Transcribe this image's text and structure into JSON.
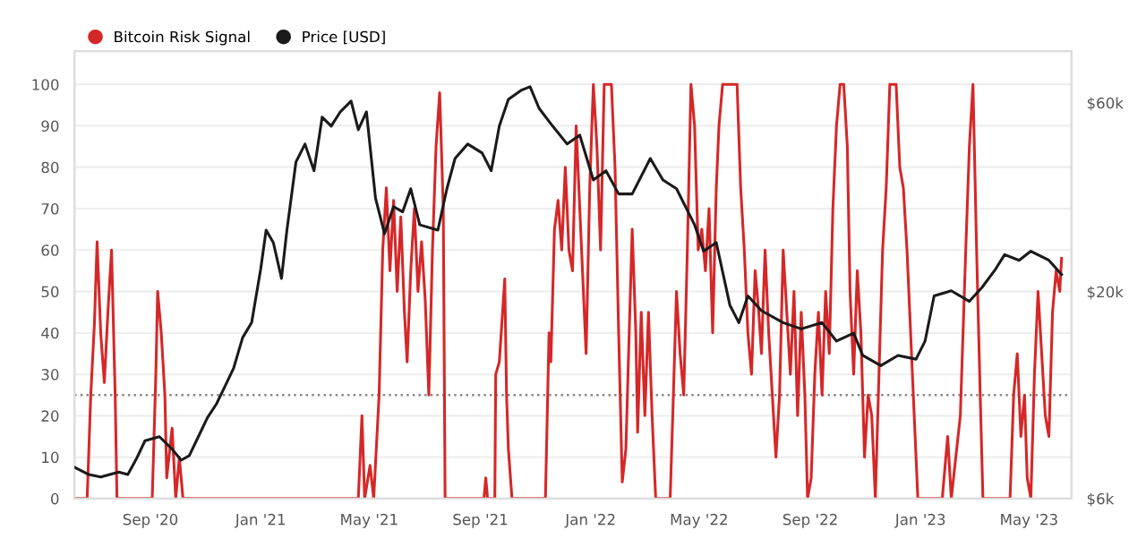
{
  "chart_data": {
    "type": "line",
    "xlim": [
      "2020-06-09",
      "2023-06-17"
    ],
    "xticks": [
      {
        "value": "2020-09-01",
        "label": "Sep '20"
      },
      {
        "value": "2021-01-01",
        "label": "Jan '21"
      },
      {
        "value": "2021-05-01",
        "label": "May '21"
      },
      {
        "value": "2021-09-01",
        "label": "Sep '21"
      },
      {
        "value": "2022-01-01",
        "label": "Jan '22"
      },
      {
        "value": "2022-05-01",
        "label": "May '22"
      },
      {
        "value": "2022-09-01",
        "label": "Sep '22"
      },
      {
        "value": "2023-01-01",
        "label": "Jan '23"
      },
      {
        "value": "2023-05-01",
        "label": "May '23"
      }
    ],
    "ylim": [
      0,
      108
    ],
    "yticks": [
      0,
      10,
      20,
      30,
      40,
      50,
      60,
      70,
      80,
      90,
      100
    ],
    "y2lim": [
      6000,
      81000
    ],
    "y2ticks": [
      {
        "value": 6000,
        "label": "$6k"
      },
      {
        "value": 20000,
        "label": "$20k"
      },
      {
        "value": 60000,
        "label": "$60k"
      }
    ],
    "log": "y2",
    "grid": "y",
    "legend": "top left",
    "marker": "none",
    "line_style": "solid",
    "ref_lines": [
      {
        "axis": "y",
        "value": 25,
        "label": null,
        "color": "#888888",
        "line_style": "dotted"
      }
    ],
    "series": [
      {
        "name": "Bitcoin Risk Signal",
        "color": "#d62728",
        "x": [
          "2020-06-09",
          "2020-06-23",
          "2020-06-27",
          "2020-07-01",
          "2020-07-04",
          "2020-07-08",
          "2020-07-12",
          "2020-07-16",
          "2020-07-20",
          "2020-07-24",
          "2020-07-26",
          "2020-09-03",
          "2020-09-07",
          "2020-09-09",
          "2020-09-13",
          "2020-09-17",
          "2020-09-19",
          "2020-09-25",
          "2020-09-29",
          "2020-10-03",
          "2020-10-07",
          "2021-04-19",
          "2021-04-23",
          "2021-04-26",
          "2021-05-02",
          "2021-05-06",
          "2021-05-12",
          "2021-05-16",
          "2021-05-20",
          "2021-05-24",
          "2021-05-28",
          "2021-06-01",
          "2021-06-05",
          "2021-06-09",
          "2021-06-12",
          "2021-06-16",
          "2021-06-20",
          "2021-06-24",
          "2021-06-28",
          "2021-07-02",
          "2021-07-06",
          "2021-07-10",
          "2021-07-14",
          "2021-07-18",
          "2021-07-22",
          "2021-07-24",
          "2021-09-05",
          "2021-09-07",
          "2021-09-09",
          "2021-09-17",
          "2021-09-18",
          "2021-09-22",
          "2021-09-28",
          "2021-09-30",
          "2021-10-02",
          "2021-10-06",
          "2021-11-12",
          "2021-11-16",
          "2021-11-18",
          "2021-11-22",
          "2021-11-26",
          "2021-11-30",
          "2021-12-04",
          "2021-12-08",
          "2021-12-12",
          "2021-12-16",
          "2021-12-20",
          "2021-12-24",
          "2021-12-27",
          "2021-12-31",
          "2022-01-04",
          "2022-01-08",
          "2022-01-12",
          "2022-01-16",
          "2022-01-24",
          "2022-01-28",
          "2022-02-01",
          "2022-02-05",
          "2022-02-09",
          "2022-02-12",
          "2022-02-16",
          "2022-02-20",
          "2022-02-22",
          "2022-02-26",
          "2022-03-02",
          "2022-03-06",
          "2022-03-10",
          "2022-03-14",
          "2022-03-30",
          "2022-04-02",
          "2022-04-06",
          "2022-04-10",
          "2022-04-14",
          "2022-04-18",
          "2022-04-22",
          "2022-04-26",
          "2022-04-30",
          "2022-05-04",
          "2022-05-08",
          "2022-05-12",
          "2022-05-16",
          "2022-05-20",
          "2022-05-23",
          "2022-05-27",
          "2022-06-12",
          "2022-06-16",
          "2022-06-20",
          "2022-06-24",
          "2022-06-28",
          "2022-07-02",
          "2022-07-06",
          "2022-07-09",
          "2022-07-13",
          "2022-07-17",
          "2022-07-21",
          "2022-07-25",
          "2022-07-29",
          "2022-08-02",
          "2022-08-06",
          "2022-08-10",
          "2022-08-14",
          "2022-08-18",
          "2022-08-22",
          "2022-08-26",
          "2022-08-29",
          "2022-09-02",
          "2022-09-06",
          "2022-09-10",
          "2022-09-14",
          "2022-09-18",
          "2022-09-22",
          "2022-09-26",
          "2022-09-30",
          "2022-10-04",
          "2022-10-08",
          "2022-10-12",
          "2022-10-15",
          "2022-10-19",
          "2022-10-23",
          "2022-10-27",
          "2022-10-31",
          "2022-11-04",
          "2022-11-08",
          "2022-11-12",
          "2022-11-16",
          "2022-11-20",
          "2022-11-24",
          "2022-11-28",
          "2022-12-05",
          "2022-12-09",
          "2022-12-13",
          "2022-12-17",
          "2022-12-21",
          "2022-12-25",
          "2022-12-29",
          "2023-01-25",
          "2023-01-31",
          "2023-02-04",
          "2023-02-14",
          "2023-02-20",
          "2023-02-24",
          "2023-02-28",
          "2023-03-04",
          "2023-03-08",
          "2023-03-11",
          "2023-04-10",
          "2023-04-14",
          "2023-04-18",
          "2023-04-22",
          "2023-04-26",
          "2023-04-29",
          "2023-05-03",
          "2023-05-07",
          "2023-05-11",
          "2023-05-15",
          "2023-05-19",
          "2023-05-23",
          "2023-05-27",
          "2023-05-31",
          "2023-06-04",
          "2023-06-06"
        ],
        "values": [
          0,
          0,
          25,
          42,
          62,
          40,
          28,
          45,
          60,
          25,
          0,
          0,
          30,
          50,
          40,
          25,
          5,
          17,
          0,
          10,
          0,
          0,
          20,
          0,
          8,
          0,
          25,
          60,
          75,
          55,
          72,
          50,
          68,
          45,
          33,
          55,
          70,
          50,
          62,
          48,
          25,
          60,
          85,
          98,
          70,
          0,
          0,
          5,
          0,
          0,
          30,
          33,
          53,
          25,
          12,
          0,
          0,
          40,
          33,
          65,
          72,
          60,
          80,
          60,
          55,
          90,
          70,
          50,
          35,
          75,
          100,
          85,
          60,
          100,
          100,
          80,
          40,
          4,
          12,
          35,
          65,
          40,
          16,
          45,
          20,
          45,
          20,
          0,
          0,
          21,
          50,
          35,
          25,
          60,
          100,
          90,
          60,
          65,
          55,
          70,
          40,
          75,
          90,
          100,
          100,
          75,
          60,
          40,
          30,
          55,
          45,
          35,
          60,
          40,
          25,
          10,
          25,
          60,
          45,
          30,
          50,
          20,
          45,
          25,
          0,
          5,
          30,
          45,
          25,
          50,
          35,
          70,
          90,
          100,
          100,
          85,
          50,
          30,
          55,
          40,
          10,
          25,
          20,
          0,
          30,
          60,
          75,
          100,
          100,
          80,
          75,
          60,
          40,
          20,
          0,
          0,
          15,
          0,
          20,
          60,
          85,
          100,
          60,
          25,
          0,
          0,
          25,
          35,
          15,
          25,
          5,
          0,
          30,
          50,
          35,
          20,
          15,
          45,
          55,
          50,
          58
        ]
      },
      {
        "name": "Price [USD]",
        "color": "#1a1a1a",
        "axis": "y2",
        "x": [
          "2020-06-09",
          "2020-06-25",
          "2020-07-08",
          "2020-07-28",
          "2020-08-07",
          "2020-08-17",
          "2020-08-26",
          "2020-09-11",
          "2020-09-25",
          "2020-10-05",
          "2020-10-14",
          "2020-10-24",
          "2020-11-03",
          "2020-11-13",
          "2020-11-23",
          "2020-12-02",
          "2020-12-12",
          "2020-12-22",
          "2021-01-01",
          "2021-01-07",
          "2021-01-15",
          "2021-01-24",
          "2021-01-30",
          "2021-02-09",
          "2021-02-19",
          "2021-03-01",
          "2021-03-10",
          "2021-03-20",
          "2021-03-30",
          "2021-04-11",
          "2021-04-19",
          "2021-04-28",
          "2021-05-08",
          "2021-05-18",
          "2021-05-28",
          "2021-06-07",
          "2021-06-16",
          "2021-06-26",
          "2021-07-16",
          "2021-07-26",
          "2021-08-04",
          "2021-08-18",
          "2021-09-03",
          "2021-09-13",
          "2021-09-22",
          "2021-10-02",
          "2021-10-16",
          "2021-10-26",
          "2021-11-05",
          "2021-11-20",
          "2021-12-06",
          "2021-12-20",
          "2022-01-04",
          "2022-01-18",
          "2022-02-01",
          "2022-02-16",
          "2022-03-08",
          "2022-03-22",
          "2022-04-06",
          "2022-04-26",
          "2022-05-06",
          "2022-05-20",
          "2022-06-04",
          "2022-06-14",
          "2022-06-24",
          "2022-07-09",
          "2022-08-02",
          "2022-08-22",
          "2022-09-14",
          "2022-09-30",
          "2022-10-19",
          "2022-10-29",
          "2022-11-18",
          "2022-12-07",
          "2022-12-27",
          "2023-01-06",
          "2023-01-16",
          "2023-02-04",
          "2023-02-24",
          "2023-03-10",
          "2023-03-25",
          "2023-04-04",
          "2023-04-20",
          "2023-05-03",
          "2023-05-23",
          "2023-06-06"
        ],
        "values": [
          7200,
          6900,
          6800,
          7000,
          6900,
          7600,
          8400,
          8600,
          8000,
          7500,
          7700,
          8600,
          9600,
          10400,
          11600,
          12800,
          15300,
          16700,
          22800,
          28600,
          26600,
          21600,
          28600,
          42500,
          47200,
          40400,
          55200,
          52400,
          56900,
          60600,
          51300,
          56900,
          34500,
          28000,
          32800,
          31800,
          36400,
          29500,
          28600,
          36400,
          43400,
          47200,
          44800,
          40400,
          52400,
          61200,
          64500,
          65900,
          58100,
          52400,
          47200,
          49700,
          38300,
          40400,
          35300,
          35300,
          43400,
          38300,
          36400,
          29500,
          25300,
          26600,
          18500,
          16700,
          19500,
          17900,
          16700,
          16100,
          16700,
          15000,
          15700,
          13800,
          13000,
          13800,
          13500,
          15000,
          19500,
          20100,
          18900,
          20500,
          22800,
          24800,
          24000,
          25300,
          24000,
          22100
        ]
      }
    ]
  }
}
